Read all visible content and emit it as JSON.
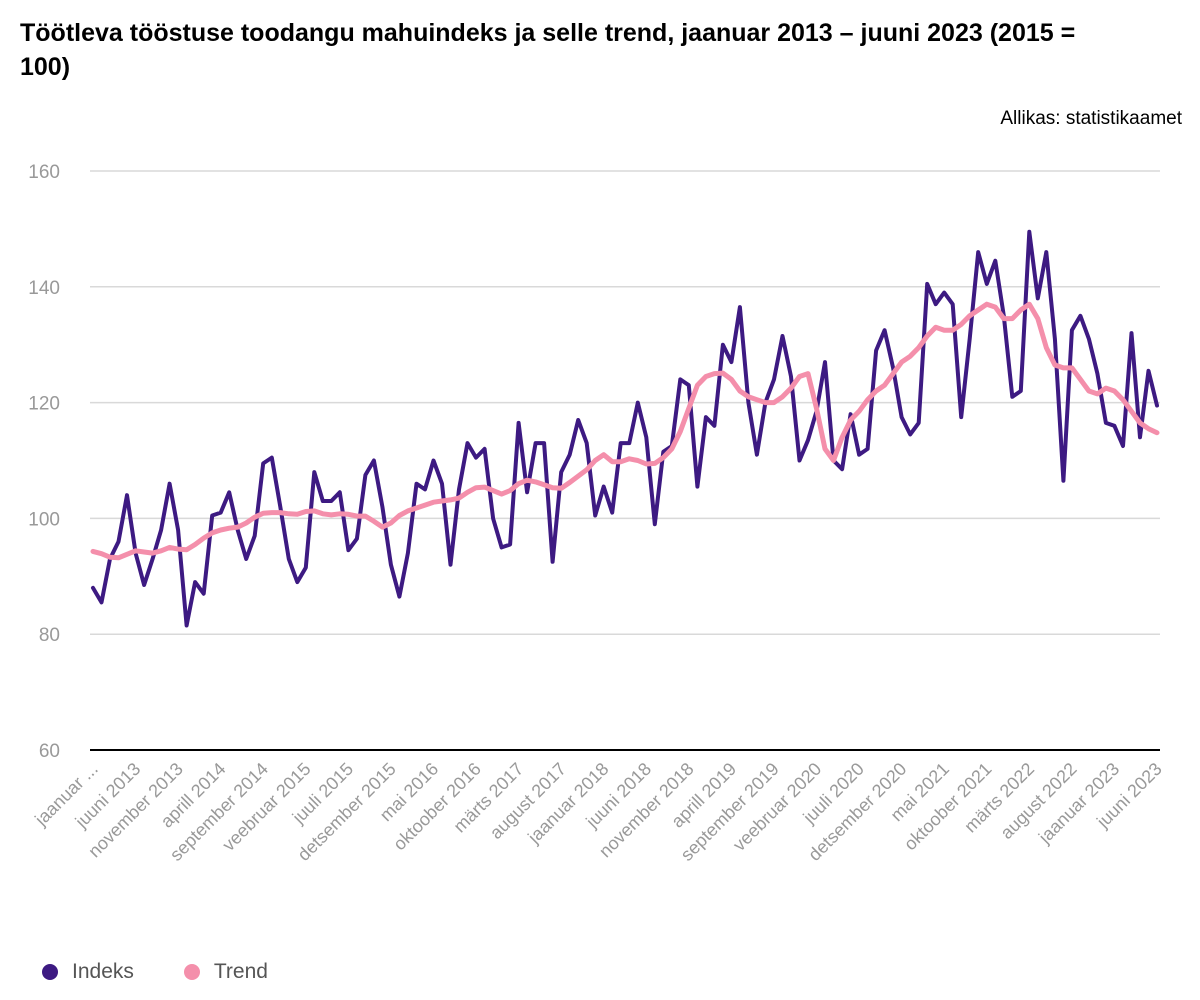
{
  "chart_data": {
    "type": "line",
    "title": "Töötleva tööstuse toodangu mahuindeks ja selle trend, jaanuar 2013 – juuni 2023 (2015 = 100)",
    "source": "Allikas: statistikaamet",
    "xlabel": "",
    "ylabel": "",
    "ylim": [
      60,
      160
    ],
    "yticks": [
      "60",
      "80",
      "100",
      "120",
      "140",
      "160"
    ],
    "ytick_values": [
      60,
      80,
      100,
      120,
      140,
      160
    ],
    "x_start": "jaanuar 2013",
    "x_end": "juuni 2023",
    "grid": true,
    "legend_position": "bottom-left",
    "xtick_labels": [
      "jaanuar ...",
      "juuni 2013",
      "november 2013",
      "aprill 2014",
      "september 2014",
      "veebruar 2015",
      "juuli 2015",
      "detsember 2015",
      "mai 2016",
      "oktoober 2016",
      "märts 2017",
      "august 2017",
      "jaanuar 2018",
      "juuni 2018",
      "november 2018",
      "aprill 2019",
      "september 2019",
      "veebruar 2020",
      "juuli 2020",
      "detsember 2020",
      "mai 2021",
      "oktoober 2021",
      "märts 2022",
      "august 2022",
      "jaanuar 2023",
      "juuni 2023"
    ],
    "xtick_every_months": 5,
    "series": [
      {
        "name": "Indeks",
        "color": "#3d1a82",
        "values": [
          88,
          85.5,
          93,
          96,
          104,
          94,
          88.5,
          93,
          98,
          106,
          98,
          81.5,
          89,
          87,
          100.5,
          101,
          104.5,
          98,
          93,
          97,
          109.5,
          110.5,
          102,
          93,
          89,
          91.5,
          108,
          103,
          103,
          104.5,
          94.5,
          96.5,
          107.5,
          110,
          102,
          92,
          86.5,
          94,
          106,
          105,
          110,
          106,
          92,
          105,
          113,
          110.5,
          112,
          100,
          95,
          95.5,
          116.5,
          104.5,
          113,
          113,
          92.5,
          108,
          111,
          117,
          113,
          100.5,
          105.5,
          101,
          113,
          113,
          120,
          114,
          99,
          111.5,
          112.5,
          124,
          123,
          105.5,
          117.5,
          116,
          130,
          127,
          136.5,
          120,
          111,
          120,
          124,
          131.5,
          124.5,
          110,
          113.5,
          118.5,
          127,
          110,
          108.5,
          118,
          111,
          112,
          129,
          132.5,
          126,
          117.5,
          114.5,
          116.5,
          140.5,
          137,
          139,
          137,
          117.5,
          131,
          146,
          140.5,
          144.5,
          135,
          121,
          122,
          149.5,
          138,
          146,
          131,
          106.5,
          132.5,
          135,
          131,
          125,
          116.5,
          116,
          112.5,
          132,
          114,
          125.5,
          119.5
        ]
      },
      {
        "name": "Trend",
        "color": "#f48fab",
        "values": [
          94.3,
          93.9,
          93.3,
          93.2,
          93.8,
          94.4,
          94.2,
          94,
          94.4,
          95,
          94.7,
          94.6,
          95.5,
          96.6,
          97.5,
          98,
          98.3,
          98.5,
          99.2,
          100.2,
          100.9,
          101,
          101,
          100.8,
          100.7,
          101.2,
          101.3,
          100.8,
          100.6,
          100.8,
          100.7,
          100.4,
          100.4,
          99.5,
          98.5,
          99.2,
          100.5,
          101.3,
          101.8,
          102.3,
          102.8,
          103,
          103.2,
          103.5,
          104.5,
          105.3,
          105.4,
          104.8,
          104.2,
          104.8,
          106,
          106.6,
          106.3,
          105.8,
          105.3,
          105.2,
          106.2,
          107.3,
          108.4,
          110,
          111,
          109.8,
          109.8,
          110.3,
          110,
          109.4,
          109.5,
          110.5,
          112,
          115,
          119,
          123,
          124.5,
          125,
          125.1,
          124,
          122,
          121,
          120.5,
          120,
          120,
          121,
          122.5,
          124.5,
          125,
          119,
          112,
          110,
          114,
          117,
          118.5,
          120.5,
          122,
          123,
          125,
          127,
          128,
          129.5,
          131.5,
          133,
          132.5,
          132.5,
          133.5,
          135,
          136,
          137,
          136.5,
          134.5,
          134.5,
          136,
          137,
          134.5,
          129.5,
          126.5,
          126,
          126,
          124,
          122,
          121.5,
          122.5,
          122,
          120.5,
          118.5,
          116.5,
          115.5,
          114.8
        ]
      }
    ]
  }
}
